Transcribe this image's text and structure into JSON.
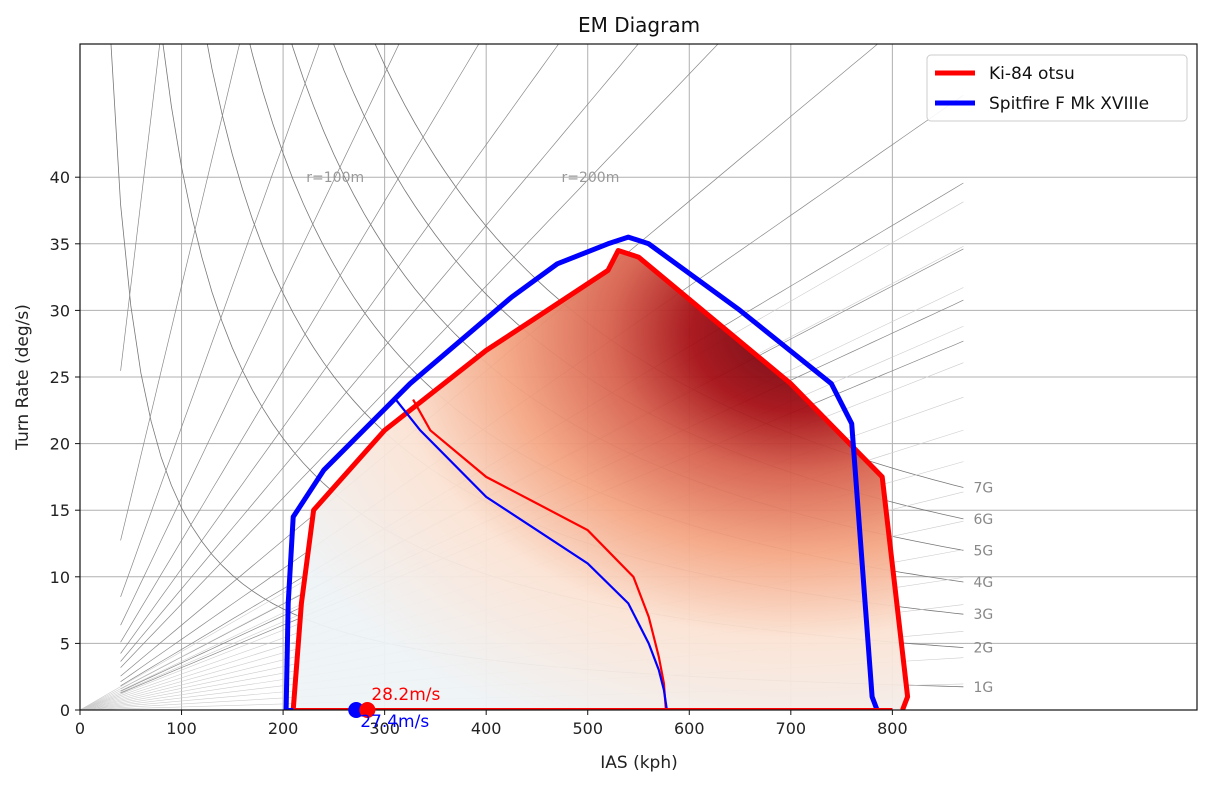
{
  "chart_data": {
    "type": "line",
    "title": "EM Diagram",
    "xlabel": "IAS (kph)",
    "ylabel": "Turn Rate (deg/s)",
    "xlim": [
      0,
      1100
    ],
    "ylim": [
      0,
      50
    ],
    "xticks": [
      0,
      100,
      200,
      300,
      400,
      500,
      600,
      700,
      800
    ],
    "yticks": [
      0,
      5,
      10,
      15,
      20,
      25,
      30,
      35,
      40
    ],
    "grid": true,
    "legend": {
      "placement": "top-right",
      "entries": [
        {
          "name": "Ki-84 otsu",
          "color": "#ff0000"
        },
        {
          "name": "Spitfire F Mk XVIIIe",
          "color": "#0000ff"
        }
      ]
    },
    "g_lines": [
      "1G",
      "2G",
      "3G",
      "4G",
      "5G",
      "6G",
      "7G"
    ],
    "radius_labels": [
      {
        "label": "r=100m",
        "radius_m": 100
      },
      {
        "label": "r=200m",
        "radius_m": 200
      }
    ],
    "radius_curves_m": [
      25,
      50,
      75,
      100,
      125,
      150,
      175,
      200,
      250,
      300,
      350,
      400,
      450,
      500
    ],
    "series": [
      {
        "name": "Ki-84 otsu",
        "color": "#ff0000",
        "envelope": [
          [
            210,
            0
          ],
          [
            218,
            8
          ],
          [
            230,
            15
          ],
          [
            300,
            21
          ],
          [
            400,
            27
          ],
          [
            450,
            29.5
          ],
          [
            520,
            33
          ],
          [
            530,
            34.5
          ],
          [
            550,
            34
          ],
          [
            700,
            24.5
          ],
          [
            790,
            17.5
          ],
          [
            815,
            1
          ],
          [
            810,
            0
          ]
        ],
        "sustained": [
          [
            328,
            23.3
          ],
          [
            345,
            21
          ],
          [
            400,
            17.5
          ],
          [
            450,
            15.5
          ],
          [
            500,
            13.5
          ],
          [
            545,
            10
          ],
          [
            560,
            7
          ],
          [
            570,
            4
          ],
          [
            575,
            2
          ],
          [
            577,
            0
          ]
        ],
        "marker": {
          "x": 283,
          "y": 0,
          "label": "28.2m/s"
        }
      },
      {
        "name": "Spitfire F Mk XVIIIe",
        "color": "#0000ff",
        "envelope": [
          [
            203,
            0
          ],
          [
            205,
            8
          ],
          [
            210,
            14.5
          ],
          [
            240,
            18
          ],
          [
            325,
            24.5
          ],
          [
            425,
            31
          ],
          [
            470,
            33.5
          ],
          [
            520,
            35
          ],
          [
            540,
            35.5
          ],
          [
            560,
            35
          ],
          [
            650,
            30
          ],
          [
            740,
            24.5
          ],
          [
            760,
            21.5
          ],
          [
            780,
            1
          ],
          [
            785,
            0
          ]
        ],
        "sustained": [
          [
            310,
            23.4
          ],
          [
            335,
            21
          ],
          [
            400,
            16
          ],
          [
            450,
            13.5
          ],
          [
            500,
            11
          ],
          [
            540,
            8
          ],
          [
            560,
            5
          ],
          [
            570,
            3
          ],
          [
            575,
            1.5
          ],
          [
            578,
            0
          ]
        ],
        "marker": {
          "x": 272,
          "y": 0,
          "label": "27.4m/s"
        }
      }
    ]
  }
}
